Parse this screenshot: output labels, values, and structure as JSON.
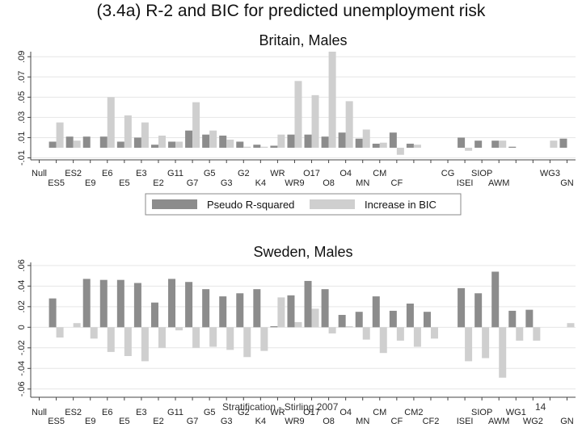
{
  "slide": {
    "title": "(3.4a) R-2 and BIC for predicted unemployment risk",
    "footer": "Stratification - Stirling 2007",
    "page_number": "14"
  },
  "colors": {
    "pseudo": "#8c8c8c",
    "bic": "#cfcfcf",
    "grid": "#e6e6e6",
    "axis": "#444444"
  },
  "chart_data": [
    {
      "type": "bar",
      "title": "Britain, Males",
      "ylim": [
        -0.012,
        0.095
      ],
      "yticks": [
        -0.01,
        0.01,
        0.03,
        0.05,
        0.07,
        0.09
      ],
      "ytick_labels": [
        "-.01",
        ".01",
        ".03",
        ".05",
        ".07",
        ".09"
      ],
      "labels_row1": [
        "Null",
        "ES2",
        "E6",
        "E3",
        "G11",
        "G5",
        "G2",
        "WR",
        "O17",
        "O4",
        "CM",
        "",
        "CG",
        "SIOP",
        "",
        "WG3"
      ],
      "labels_row2": [
        "ES5",
        "E9",
        "E5",
        "E2",
        "G7",
        "G3",
        "K4",
        "WR9",
        "O8",
        "MN",
        "CF",
        "",
        "ISEI",
        "AWM",
        "",
        "GN"
      ],
      "series": [
        {
          "name": "Pseudo R-squared",
          "values": [
            0,
            0.006,
            0.011,
            0.011,
            0.011,
            0.006,
            0.01,
            0.003,
            0.006,
            0.017,
            0.013,
            0.012,
            0.006,
            0.003,
            0.002,
            0.013,
            0.013,
            0.011,
            0.015,
            0.009,
            0.004,
            0.015,
            0.004,
            0,
            0,
            0.01,
            0.007,
            0.007,
            0.001,
            0,
            0,
            0.009
          ]
        },
        {
          "name": "Increase in BIC",
          "values": [
            0,
            0.025,
            0.007,
            0,
            0.05,
            0.032,
            0.025,
            0.012,
            0.006,
            0.045,
            0.017,
            0.008,
            0.001,
            0.001,
            0.013,
            0.066,
            0.052,
            0.095,
            0.046,
            0.018,
            0.005,
            -0.007,
            0.003,
            0,
            0,
            -0.003,
            0,
            0.007,
            0,
            0,
            0.007,
            0
          ]
        }
      ],
      "legend": [
        "Pseudo R-squared",
        "Increase in BIC"
      ]
    },
    {
      "type": "bar",
      "title": "Sweden, Males",
      "ylim": [
        -0.068,
        0.063
      ],
      "yticks": [
        -0.06,
        -0.04,
        -0.02,
        0,
        0.02,
        0.04,
        0.06
      ],
      "ytick_labels": [
        "-.06",
        "-.04",
        "-.02",
        "0",
        ".02",
        ".04",
        ".06"
      ],
      "labels_row1": [
        "Null",
        "ES2",
        "E6",
        "E3",
        "G11",
        "G5",
        "G2",
        "WR",
        "O17",
        "O4",
        "CM",
        "CM2",
        "",
        "SIOP",
        "WG1",
        ""
      ],
      "labels_row2": [
        "ES5",
        "E9",
        "E5",
        "E2",
        "G7",
        "G3",
        "K4",
        "WR9",
        "O8",
        "MN",
        "CF",
        "CF2",
        "ISEI",
        "AWM",
        "WG2",
        "GN"
      ],
      "series": [
        {
          "name": "Pseudo R-squared",
          "values": [
            0,
            0.028,
            0,
            0.047,
            0.046,
            0.046,
            0.043,
            0.024,
            0.047,
            0.044,
            0.037,
            0.03,
            0.033,
            0.037,
            0.001,
            0.031,
            0.045,
            0.037,
            0.012,
            0.015,
            0.03,
            0.016,
            0.023,
            0.015,
            0,
            0.038,
            0.033,
            0.054,
            0.016,
            0.017,
            0,
            0
          ]
        },
        {
          "name": "Increase in BIC",
          "values": [
            0,
            -0.01,
            0.004,
            -0.011,
            -0.024,
            -0.028,
            -0.033,
            -0.02,
            -0.003,
            -0.02,
            -0.019,
            -0.022,
            -0.029,
            -0.023,
            0.029,
            0.005,
            0.018,
            -0.006,
            0.001,
            -0.012,
            -0.025,
            -0.013,
            -0.019,
            -0.011,
            0,
            -0.033,
            -0.03,
            -0.049,
            -0.013,
            -0.013,
            0,
            0.004
          ]
        }
      ],
      "legend": []
    }
  ]
}
